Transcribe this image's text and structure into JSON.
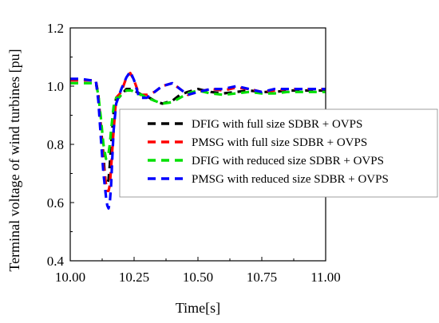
{
  "chart_data": {
    "type": "line",
    "xlabel": "Time[s]",
    "ylabel": "Terminal voltage of wind turbines [pu]",
    "xlim": [
      10.0,
      11.0
    ],
    "ylim": [
      0.4,
      1.2
    ],
    "x_ticks": [
      "10.00",
      "10.25",
      "10.50",
      "10.75",
      "11.00"
    ],
    "y_ticks": [
      "0.4",
      "0.6",
      "0.8",
      "1.0",
      "1.2"
    ],
    "grid": false,
    "legend_position": "center-right",
    "series": [
      {
        "name": "DFIG with full size SDBR + OVPS",
        "color": "#000000",
        "dash": "dashed",
        "x": [
          10.0,
          10.04,
          10.08,
          10.1,
          10.11,
          10.12,
          10.13,
          10.135,
          10.14,
          10.145,
          10.15,
          10.155,
          10.16,
          10.17,
          10.18,
          10.19,
          10.2,
          10.22,
          10.24,
          10.26,
          10.28,
          10.3,
          10.33,
          10.36,
          10.4,
          10.43,
          10.46,
          10.5,
          10.55,
          10.6,
          10.65,
          10.7,
          10.75,
          10.8,
          10.85,
          10.9,
          11.0
        ],
        "y": [
          1.02,
          1.02,
          1.02,
          1.02,
          0.97,
          0.86,
          0.76,
          0.7,
          0.66,
          0.66,
          0.68,
          0.73,
          0.8,
          0.91,
          0.96,
          0.96,
          0.97,
          0.99,
          0.99,
          0.98,
          0.97,
          0.965,
          0.95,
          0.94,
          0.95,
          0.97,
          0.98,
          0.99,
          0.98,
          0.975,
          0.98,
          0.985,
          0.98,
          0.98,
          0.985,
          0.985,
          0.985
        ]
      },
      {
        "name": "PMSG with full size SDBR + OVPS",
        "color": "#ff0000",
        "dash": "dashed",
        "x": [
          10.0,
          10.04,
          10.08,
          10.1,
          10.11,
          10.12,
          10.13,
          10.14,
          10.145,
          10.15,
          10.155,
          10.16,
          10.17,
          10.18,
          10.2,
          10.22,
          10.235,
          10.25,
          10.27,
          10.3,
          10.33,
          10.36,
          10.4,
          10.43,
          10.46,
          10.5,
          10.55,
          10.6,
          10.65,
          10.7,
          10.75,
          10.8,
          10.85,
          10.9,
          11.0
        ],
        "y": [
          1.02,
          1.02,
          1.02,
          1.02,
          0.96,
          0.85,
          0.73,
          0.66,
          0.64,
          0.64,
          0.66,
          0.72,
          0.85,
          0.96,
          0.98,
          1.03,
          1.045,
          1.02,
          0.97,
          0.97,
          0.98,
          1.0,
          1.01,
          0.99,
          0.97,
          0.98,
          0.99,
          0.985,
          0.995,
          0.99,
          0.98,
          0.985,
          0.99,
          0.99,
          0.99
        ]
      },
      {
        "name": "DFIG with reduced size SDBR + OVPS",
        "color": "#00e000",
        "dash": "dashed",
        "x": [
          10.0,
          10.04,
          10.08,
          10.1,
          10.11,
          10.12,
          10.13,
          10.14,
          10.15,
          10.155,
          10.16,
          10.17,
          10.18,
          10.19,
          10.2,
          10.22,
          10.24,
          10.26,
          10.28,
          10.3,
          10.33,
          10.36,
          10.4,
          10.43,
          10.46,
          10.5,
          10.55,
          10.6,
          10.65,
          10.7,
          10.75,
          10.8,
          10.85,
          10.9,
          11.0
        ],
        "y": [
          1.01,
          1.01,
          1.01,
          1.01,
          0.97,
          0.89,
          0.8,
          0.75,
          0.77,
          0.8,
          0.85,
          0.93,
          0.96,
          0.96,
          0.97,
          0.985,
          0.985,
          0.975,
          0.97,
          0.96,
          0.95,
          0.94,
          0.945,
          0.96,
          0.975,
          0.985,
          0.975,
          0.97,
          0.975,
          0.98,
          0.975,
          0.975,
          0.98,
          0.98,
          0.98
        ]
      },
      {
        "name": "PMSG with reduced size SDBR + OVPS",
        "color": "#0000ff",
        "dash": "dashed",
        "x": [
          10.0,
          10.04,
          10.08,
          10.1,
          10.11,
          10.12,
          10.13,
          10.14,
          10.145,
          10.15,
          10.155,
          10.16,
          10.165,
          10.17,
          10.18,
          10.2,
          10.22,
          10.235,
          10.25,
          10.27,
          10.3,
          10.33,
          10.36,
          10.4,
          10.43,
          10.46,
          10.5,
          10.55,
          10.6,
          10.65,
          10.7,
          10.75,
          10.8,
          10.85,
          10.9,
          11.0
        ],
        "y": [
          1.025,
          1.025,
          1.02,
          1.02,
          0.95,
          0.82,
          0.7,
          0.62,
          0.59,
          0.58,
          0.6,
          0.66,
          0.76,
          0.85,
          0.94,
          0.99,
          1.03,
          1.05,
          1.02,
          0.96,
          0.96,
          0.98,
          1.0,
          1.01,
          0.99,
          0.97,
          0.98,
          0.99,
          0.99,
          1.0,
          0.99,
          0.98,
          0.99,
          0.99,
          0.99,
          0.99
        ]
      }
    ]
  }
}
